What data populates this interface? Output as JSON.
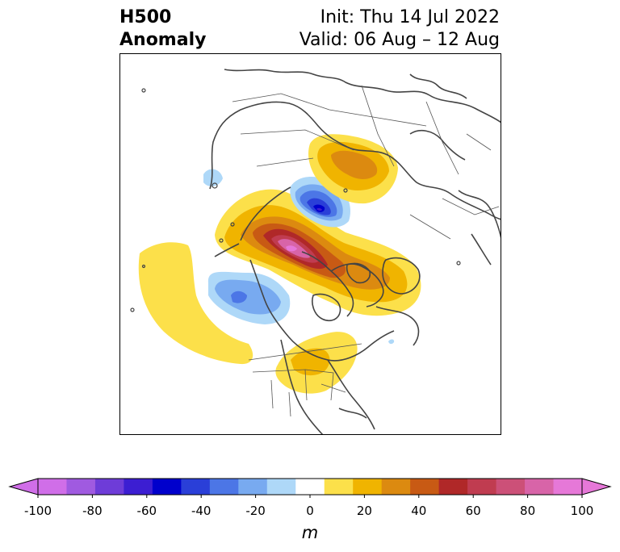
{
  "title": {
    "line1_left": "H500",
    "line2_left": "Anomaly",
    "line1_right": "Init: Thu 14 Jul 2022",
    "line2_right": "Valid: 06 Aug – 12 Aug"
  },
  "colorbar": {
    "unit": "m",
    "ticks": [
      "-100",
      "-80",
      "-60",
      "-40",
      "-20",
      "0",
      "20",
      "40",
      "60",
      "80",
      "100"
    ],
    "levels": [
      -100,
      -90,
      -80,
      -70,
      -60,
      -50,
      -40,
      -30,
      -20,
      -10,
      10,
      20,
      30,
      40,
      50,
      60,
      70,
      80,
      90,
      100
    ],
    "colors": [
      "#d06ee8",
      "#a05ae0",
      "#6e3cd8",
      "#3c1ed2",
      "#0000cc",
      "#2a3fd8",
      "#4c76e6",
      "#78aaf0",
      "#aed8f8",
      "#ffffff",
      "#fce04a",
      "#f0b400",
      "#dc8a10",
      "#c85a14",
      "#b02828",
      "#c03c50",
      "#cc5078",
      "#d864a8",
      "#e678d8"
    ],
    "under_color": "#d06ee8",
    "over_color": "#e678d8"
  },
  "map": {
    "projection": "polar stereographic, North America / Arctic",
    "features": [
      {
        "name": "north-pacific-ridge",
        "sign": "positive",
        "peak": 20
      },
      {
        "name": "bering-trough",
        "sign": "negative",
        "peak": -30
      },
      {
        "name": "canada-arctic-ridge",
        "sign": "positive",
        "peak": 90
      },
      {
        "name": "siberia-trough",
        "sign": "negative",
        "peak": -70
      },
      {
        "name": "siberia-ridge",
        "sign": "positive",
        "peak": 40
      },
      {
        "name": "us-midwest-ridge",
        "sign": "positive",
        "peak": 30
      },
      {
        "name": "gulf-of-alaska-trough",
        "sign": "negative",
        "peak": -20
      }
    ]
  }
}
